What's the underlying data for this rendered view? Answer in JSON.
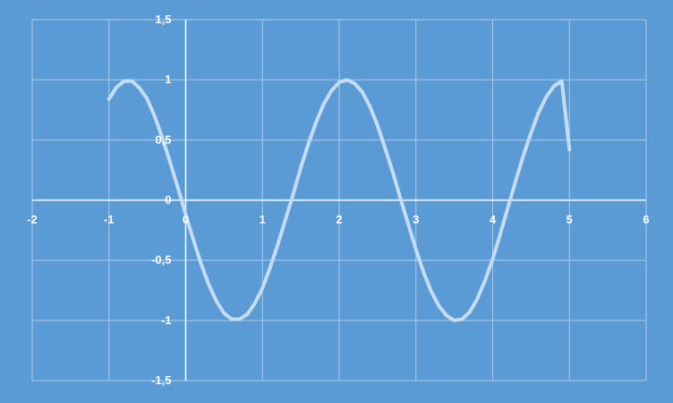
{
  "colors": {
    "background": "#5b9bd5",
    "grid": "#a9c9ea",
    "axis": "#ffffff",
    "curve": "#c5dcf3",
    "text": "#ffffff"
  },
  "chart_data": {
    "type": "line",
    "title": "",
    "xlabel": "",
    "ylabel": "",
    "xlim": [
      -2,
      6
    ],
    "ylim": [
      -1.5,
      1.5
    ],
    "grid": true,
    "legend": "none",
    "x_ticks": [
      -2,
      -1,
      0,
      1,
      2,
      3,
      4,
      5,
      6
    ],
    "x_tick_labels": [
      "-2",
      "-1",
      "0",
      "1",
      "2",
      "3",
      "4",
      "5",
      "6"
    ],
    "y_ticks": [
      1.5,
      1,
      0.5,
      0,
      -0.5,
      -1,
      -1.5
    ],
    "y_tick_labels": [
      "1,5",
      "1",
      "0,5",
      "0",
      "-0,5",
      "-1",
      "-1,5"
    ],
    "series": [
      {
        "x": [
          -1,
          -0.9,
          -0.8,
          -0.7,
          -0.6,
          -0.5,
          -0.4,
          -0.3,
          -0.2,
          -0.1,
          0,
          0.1,
          0.2,
          0.3,
          0.4,
          0.5,
          0.6,
          0.7,
          0.8,
          0.9,
          1,
          1.1,
          1.2,
          1.3,
          1.4,
          1.5,
          1.6,
          1.7,
          1.8,
          1.9,
          2,
          2.1,
          2.2,
          2.3,
          2.4,
          2.5,
          2.6,
          2.7,
          2.8,
          2.9,
          3,
          3.1,
          3.2,
          3.3,
          3.4,
          3.5,
          3.6,
          3.7,
          3.8,
          3.9,
          4,
          4.1,
          4.2,
          4.3,
          4.4,
          4.5,
          4.6,
          4.7,
          4.8,
          4.9,
          5
        ],
        "y": [
          0.84,
          0.94,
          0.99,
          0.99,
          0.93,
          0.84,
          0.69,
          0.51,
          0.31,
          0.1,
          -0.12,
          -0.33,
          -0.53,
          -0.7,
          -0.84,
          -0.94,
          -0.99,
          -0.99,
          -0.95,
          -0.86,
          -0.73,
          -0.56,
          -0.37,
          -0.16,
          0.05,
          0.27,
          0.47,
          0.65,
          0.8,
          0.91,
          0.98,
          1.0,
          0.97,
          0.9,
          0.78,
          0.62,
          0.43,
          0.23,
          0.01,
          -0.2,
          -0.41,
          -0.6,
          -0.76,
          -0.88,
          -0.96,
          -1.0,
          -0.99,
          -0.93,
          -0.82,
          -0.67,
          -0.49,
          -0.28,
          -0.06,
          0.16,
          0.37,
          0.56,
          0.73,
          0.86,
          0.95,
          0.99,
          0.42
        ]
      }
    ]
  }
}
